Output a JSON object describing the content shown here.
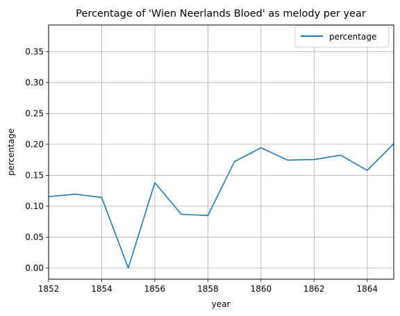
{
  "chart_data": {
    "type": "line",
    "title": "Percentage of 'Wien Neerlands Bloed' as melody per year",
    "xlabel": "year",
    "ylabel": "percentage",
    "xlim": [
      1852,
      1865
    ],
    "ylim": [
      -0.018,
      0.393
    ],
    "xticks": [
      1852,
      1854,
      1856,
      1858,
      1860,
      1862,
      1864
    ],
    "yticks": [
      0.0,
      0.05,
      0.1,
      0.15,
      0.2,
      0.25,
      0.3,
      0.35
    ],
    "xtick_labels": [
      "1852",
      "1854",
      "1856",
      "1858",
      "1860",
      "1862",
      "1864"
    ],
    "ytick_labels": [
      "0.00",
      "0.05",
      "0.10",
      "0.15",
      "0.20",
      "0.25",
      "0.30",
      "0.35"
    ],
    "grid": true,
    "legend": {
      "position": "top-right",
      "entries": [
        "percentage"
      ]
    },
    "series": [
      {
        "name": "percentage",
        "color": "#1f77b4",
        "x": [
          1852,
          1853,
          1854,
          1855,
          1856,
          1857,
          1858,
          1859,
          1860,
          1861,
          1862,
          1863,
          1864,
          1865
        ],
        "y": [
          0.1155,
          0.1195,
          0.114,
          0.0,
          0.138,
          0.087,
          0.085,
          0.172,
          0.1945,
          0.1745,
          0.1755,
          0.1825,
          0.158,
          0.201
        ]
      }
    ]
  }
}
